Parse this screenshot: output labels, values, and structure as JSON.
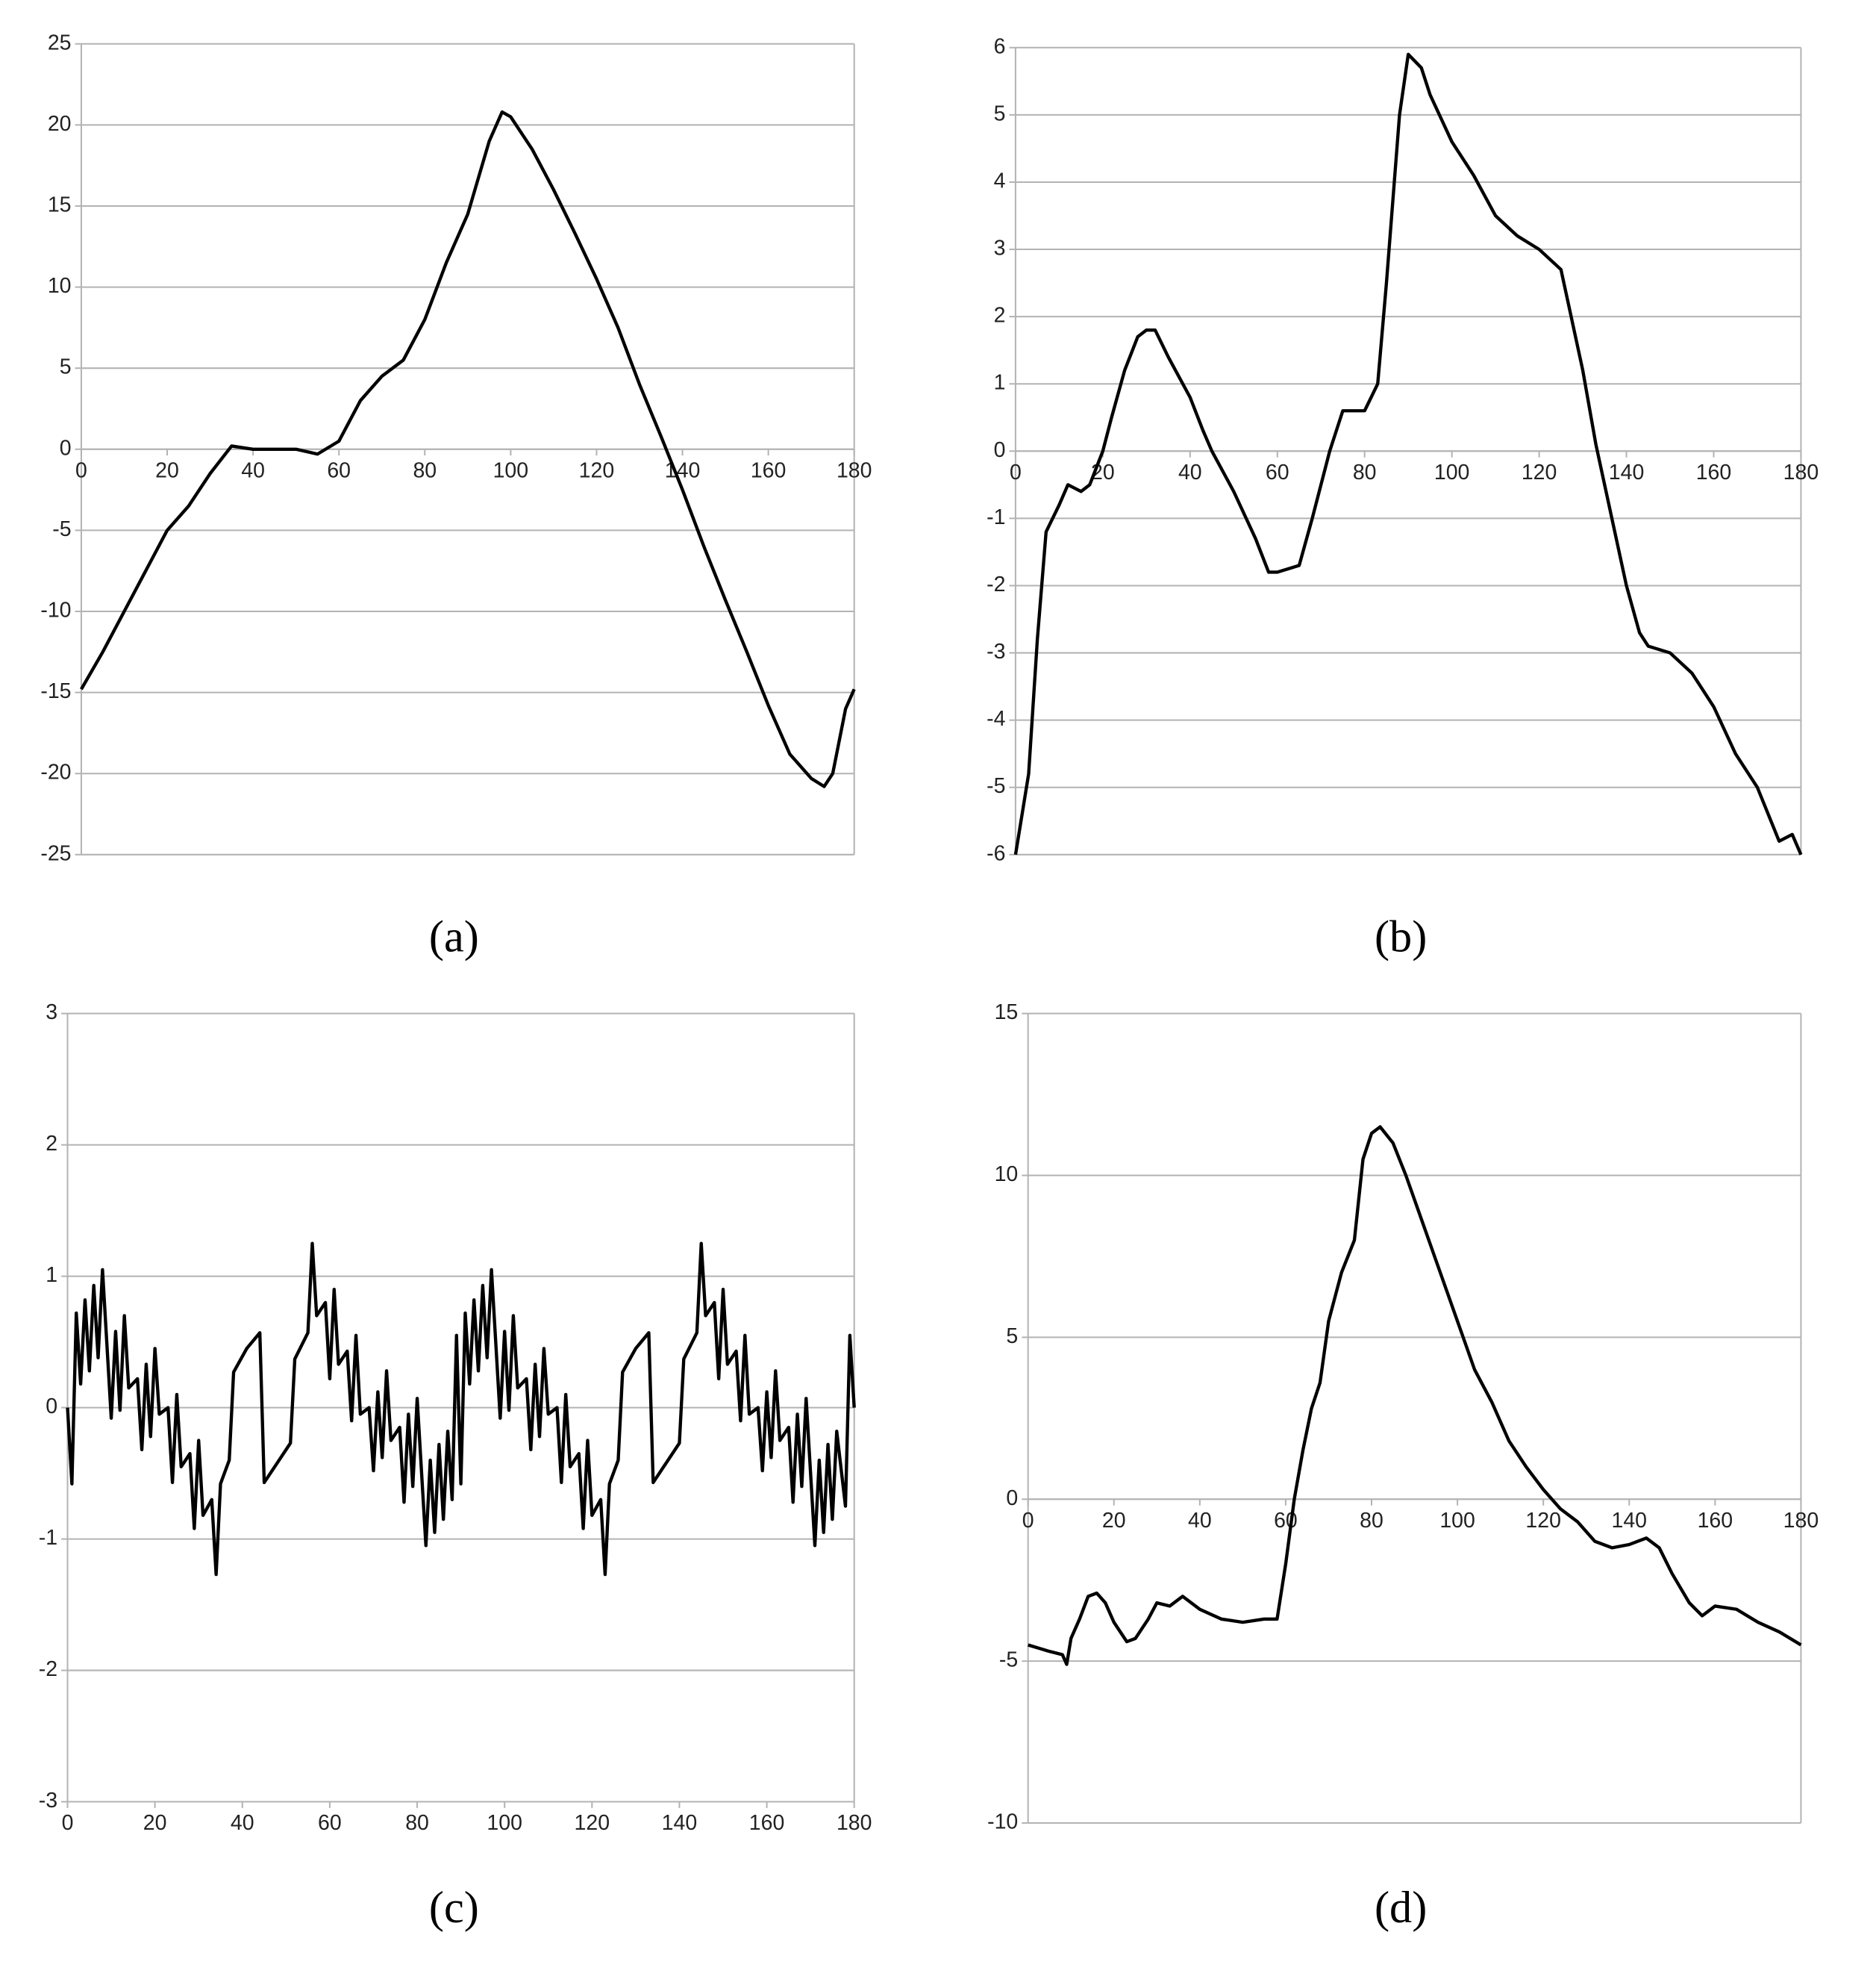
{
  "chart_data": [
    {
      "type": "line",
      "label": "(a)",
      "color": "#000000",
      "grid": true,
      "x_labels": "zero",
      "xlim": [
        0,
        180
      ],
      "xticks": [
        0,
        20,
        40,
        60,
        80,
        100,
        120,
        140,
        160,
        180
      ],
      "ylim": [
        -25,
        25
      ],
      "yticks": [
        -25,
        -20,
        -15,
        -10,
        -5,
        0,
        5,
        10,
        15,
        20,
        25
      ],
      "x": [
        0,
        5,
        10,
        15,
        20,
        25,
        30,
        35,
        40,
        45,
        50,
        55,
        60,
        65,
        70,
        75,
        80,
        85,
        90,
        95,
        98,
        100,
        105,
        110,
        115,
        120,
        125,
        130,
        135,
        140,
        145,
        150,
        155,
        160,
        165,
        170,
        173,
        175,
        178,
        180
      ],
      "values": [
        -14.8,
        -12.5,
        -10,
        -7.5,
        -5,
        -3.5,
        -1.5,
        0.2,
        0,
        0,
        0,
        -0.3,
        0.5,
        3,
        4.5,
        5.5,
        8,
        11.5,
        14.5,
        19,
        20.8,
        20.5,
        18.5,
        16,
        13.3,
        10.5,
        7.5,
        4,
        0.8,
        -2.5,
        -6,
        -9.3,
        -12.5,
        -15.8,
        -18.8,
        -20.3,
        -20.8,
        -20,
        -16,
        -14.8
      ]
    },
    {
      "type": "line",
      "label": "(b)",
      "color": "#000000",
      "grid": true,
      "x_labels": "zero",
      "xlim": [
        0,
        180
      ],
      "xticks": [
        0,
        20,
        40,
        60,
        80,
        100,
        120,
        140,
        160,
        180
      ],
      "ylim": [
        -6,
        6
      ],
      "yticks": [
        -6,
        -5,
        -4,
        -3,
        -2,
        -1,
        0,
        1,
        2,
        3,
        4,
        5,
        6
      ],
      "x": [
        0,
        3,
        5,
        7,
        10,
        12,
        15,
        17,
        20,
        22,
        25,
        28,
        30,
        32,
        35,
        40,
        43,
        45,
        50,
        55,
        58,
        60,
        65,
        68,
        72,
        75,
        80,
        83,
        85,
        88,
        90,
        93,
        95,
        100,
        105,
        110,
        115,
        120,
        125,
        130,
        133,
        135,
        140,
        143,
        145,
        150,
        155,
        160,
        165,
        170,
        175,
        178,
        180
      ],
      "values": [
        -6,
        -4.8,
        -2.8,
        -1.2,
        -0.8,
        -0.5,
        -0.6,
        -0.5,
        0,
        0.5,
        1.2,
        1.7,
        1.8,
        1.8,
        1.4,
        0.8,
        0.3,
        0,
        -0.6,
        -1.3,
        -1.8,
        -1.8,
        -1.7,
        -1,
        0,
        0.6,
        0.6,
        1,
        2.5,
        5,
        5.9,
        5.7,
        5.3,
        4.6,
        4.1,
        3.5,
        3.2,
        3,
        2.7,
        1.2,
        0.1,
        -0.5,
        -2,
        -2.7,
        -2.9,
        -3,
        -3.3,
        -3.8,
        -4.5,
        -5,
        -5.8,
        -5.7,
        -6
      ]
    },
    {
      "type": "line",
      "label": "(c)",
      "color": "#000000",
      "grid": true,
      "x_labels": "bottom",
      "xlim": [
        0,
        180
      ],
      "xticks": [
        0,
        20,
        40,
        60,
        80,
        100,
        120,
        140,
        160,
        180
      ],
      "ylim": [
        -3,
        3
      ],
      "yticks": [
        -3,
        -2,
        -1,
        0,
        1,
        2,
        3
      ],
      "x": [
        0,
        1,
        2,
        3,
        4,
        5,
        6,
        7,
        8,
        10,
        11,
        12,
        13,
        14,
        16,
        17,
        18,
        19,
        20,
        21,
        23,
        24,
        25,
        26,
        28,
        29,
        30,
        31,
        33,
        34,
        35,
        37,
        38,
        41,
        44,
        45,
        48,
        51,
        52,
        55,
        56,
        57,
        59,
        60,
        61,
        62,
        64,
        65,
        66,
        67,
        69,
        70,
        71,
        72,
        73,
        74,
        76,
        77,
        78,
        79,
        80,
        82,
        83,
        84,
        85,
        86,
        87,
        88,
        89,
        90,
        91,
        92,
        93,
        94,
        95,
        96,
        97,
        99,
        100,
        101,
        102,
        103,
        105,
        106,
        107,
        108,
        109,
        110,
        112,
        113,
        114,
        115,
        117,
        118,
        119,
        120,
        122,
        123,
        124,
        126,
        127,
        130,
        133,
        134,
        137,
        140,
        141,
        144,
        145,
        146,
        148,
        149,
        150,
        151,
        153,
        154,
        155,
        156,
        158,
        159,
        160,
        161,
        162,
        163,
        165,
        166,
        167,
        168,
        169,
        171,
        172,
        173,
        174,
        175,
        176,
        178,
        179,
        180
      ],
      "values": [
        0,
        -0.58,
        0.72,
        0.18,
        0.82,
        0.28,
        0.93,
        0.38,
        1.05,
        -0.08,
        0.58,
        -0.02,
        0.7,
        0.15,
        0.22,
        -0.32,
        0.33,
        -0.22,
        0.45,
        -0.05,
        0,
        -0.57,
        0.1,
        -0.45,
        -0.35,
        -0.92,
        -0.25,
        -0.82,
        -0.7,
        -1.27,
        -0.58,
        -0.4,
        0.27,
        0.45,
        0.57,
        -0.57,
        -0.42,
        -0.27,
        0.37,
        0.57,
        1.25,
        0.7,
        0.8,
        0.22,
        0.9,
        0.33,
        0.43,
        -0.1,
        0.55,
        -0.05,
        0,
        -0.48,
        0.12,
        -0.38,
        0.28,
        -0.25,
        -0.15,
        -0.72,
        -0.05,
        -0.6,
        0.07,
        -1.05,
        -0.4,
        -0.95,
        -0.28,
        -0.85,
        -0.18,
        -0.7,
        0.55,
        -0.58,
        0.72,
        0.18,
        0.82,
        0.28,
        0.93,
        0.38,
        1.05,
        -0.08,
        0.58,
        -0.02,
        0.7,
        0.15,
        0.22,
        -0.32,
        0.33,
        -0.22,
        0.45,
        -0.05,
        0,
        -0.57,
        0.1,
        -0.45,
        -0.35,
        -0.92,
        -0.25,
        -0.82,
        -0.7,
        -1.27,
        -0.58,
        -0.4,
        0.27,
        0.45,
        0.57,
        -0.57,
        -0.42,
        -0.27,
        0.37,
        0.57,
        1.25,
        0.7,
        0.8,
        0.22,
        0.9,
        0.33,
        0.43,
        -0.1,
        0.55,
        -0.05,
        0,
        -0.48,
        0.12,
        -0.38,
        0.28,
        -0.25,
        -0.15,
        -0.72,
        -0.05,
        -0.6,
        0.07,
        -1.05,
        -0.4,
        -0.95,
        -0.28,
        -0.85,
        -0.18,
        -0.75,
        0.55,
        0
      ]
    },
    {
      "type": "line",
      "label": "(d)",
      "color": "#000000",
      "grid": true,
      "x_labels": "zero",
      "xlim": [
        0,
        180
      ],
      "xticks": [
        0,
        20,
        40,
        60,
        80,
        100,
        120,
        140,
        160,
        180
      ],
      "ylim": [
        -10,
        15
      ],
      "yticks": [
        -10,
        -5,
        0,
        5,
        10,
        15
      ],
      "x": [
        0,
        5,
        8,
        9,
        10,
        12,
        14,
        16,
        18,
        20,
        23,
        25,
        28,
        30,
        33,
        36,
        40,
        45,
        50,
        55,
        58,
        60,
        62,
        64,
        66,
        68,
        70,
        73,
        76,
        78,
        80,
        82,
        85,
        88,
        92,
        96,
        100,
        104,
        108,
        112,
        116,
        120,
        124,
        128,
        132,
        136,
        140,
        144,
        147,
        150,
        154,
        157,
        160,
        165,
        170,
        175,
        180
      ],
      "values": [
        -4.5,
        -4.7,
        -4.8,
        -5.1,
        -4.3,
        -3.7,
        -3,
        -2.9,
        -3.2,
        -3.8,
        -4.4,
        -4.3,
        -3.7,
        -3.2,
        -3.3,
        -3,
        -3.4,
        -3.7,
        -3.8,
        -3.7,
        -3.7,
        -2,
        0,
        1.5,
        2.8,
        3.6,
        5.5,
        7,
        8,
        10.5,
        11.3,
        11.5,
        11,
        10,
        8.5,
        7,
        5.5,
        4,
        3,
        1.8,
        1,
        0.3,
        -0.3,
        -0.7,
        -1.3,
        -1.5,
        -1.4,
        -1.2,
        -1.5,
        -2.3,
        -3.2,
        -3.6,
        -3.3,
        -3.4,
        -3.8,
        -4.1,
        -4.5
      ]
    }
  ]
}
